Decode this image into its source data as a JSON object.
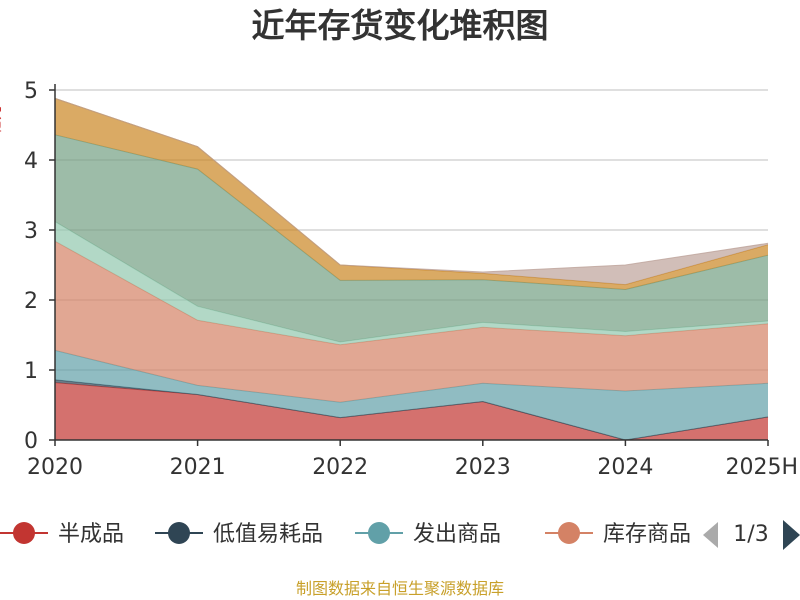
{
  "chart_data": {
    "type": "area",
    "title": "近年存货变化堆积图",
    "ylabel": "亿元",
    "categories": [
      "2020",
      "2021",
      "2022",
      "2023",
      "2024",
      "2025H"
    ],
    "ylim": [
      0,
      5
    ],
    "yticks": [
      "0",
      "1",
      "2",
      "3",
      "4",
      "5"
    ],
    "stacked": true,
    "grid": true,
    "legend_position": "bottom",
    "series": [
      {
        "name": "半成品",
        "color": "#c23531",
        "values": [
          0.82,
          0.65,
          0.32,
          0.55,
          0.0,
          0.33
        ]
      },
      {
        "name": "低值易耗品",
        "color": "#2f4554",
        "values": [
          0.04,
          0.0,
          0.0,
          0.0,
          0.0,
          0.0
        ]
      },
      {
        "name": "发出商品",
        "color": "#61a0a8",
        "values": [
          0.42,
          0.13,
          0.22,
          0.26,
          0.7,
          0.48
        ]
      },
      {
        "name": "库存商品",
        "color": "#d48265",
        "values": [
          1.56,
          0.93,
          0.82,
          0.8,
          0.79,
          0.85
        ]
      },
      {
        "name": "",
        "color": "#91c7ae",
        "values": [
          0.28,
          0.2,
          0.04,
          0.07,
          0.06,
          0.04
        ]
      },
      {
        "name": "",
        "color": "#749f83",
        "values": [
          1.24,
          1.96,
          0.88,
          0.61,
          0.6,
          0.94
        ]
      },
      {
        "name": "",
        "color": "#ca8622",
        "values": [
          0.52,
          0.32,
          0.22,
          0.09,
          0.07,
          0.15
        ]
      },
      {
        "name": "",
        "color": "#bda29a",
        "values": [
          0.0,
          0.0,
          0.0,
          0.02,
          0.28,
          0.02
        ]
      }
    ]
  },
  "legend": {
    "visible_items": [
      "半成品",
      "低值易耗品",
      "发出商品",
      "库存商品"
    ],
    "page": "1/3",
    "colors": [
      "#c23531",
      "#2f4554",
      "#61a0a8",
      "#d48265"
    ]
  },
  "source": "制图数据来自恒生聚源数据库",
  "icons": {
    "prev": "triangle-left-icon",
    "next": "triangle-right-icon"
  }
}
